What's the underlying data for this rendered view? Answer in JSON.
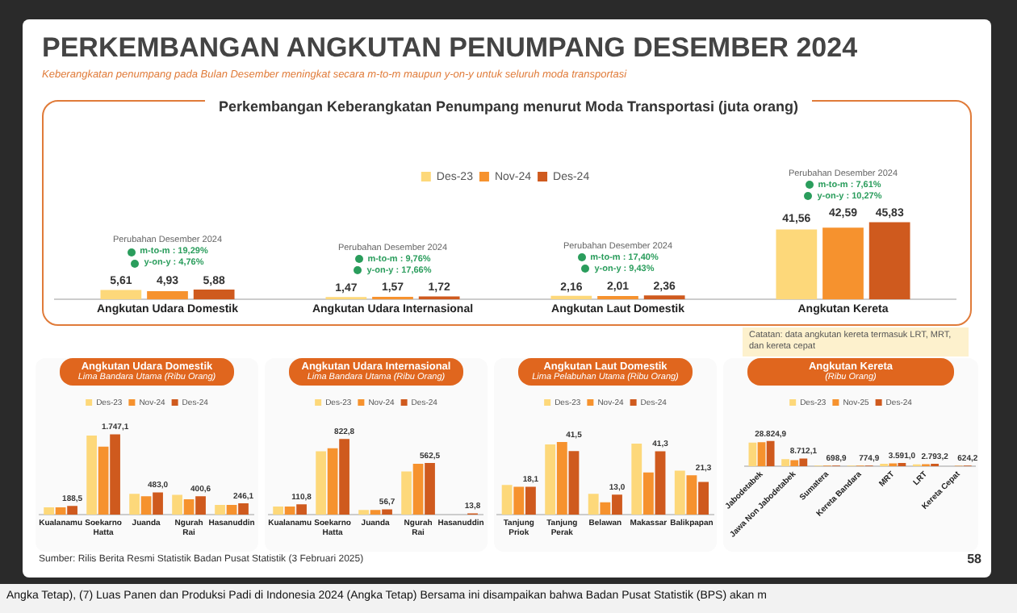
{
  "chart_data": [
    {
      "type": "other",
      "title": "PERKEMBANGAN ANGKUTAN PENUMPANG DESEMBER 2024",
      "subtitle": "Keberangkatan penumpang pada Bulan Desember meningkat secara m-to-m maupun y-on-y untuk seluruh moda transportasi",
      "annotations": [
        "Sumber: Rilis Berita Resmi Statistik Badan Pusat Statistik (3 Februari 2025)",
        "58",
        "Angka Tetap), (7) Luas Panen dan Produksi Padi di Indonesia 2024 (Angka Tetap) Bersama ini disampaikan bahwa Badan Pusat Statistik (BPS) akan m"
      ]
    },
    {
      "type": "bar",
      "title": "Perkembangan Keberangkatan Penumpang menurut Moda Transportasi (juta orang)",
      "categories": [
        "Angkutan Udara Domestik",
        "Angkutan Udara Internasional",
        "Angkutan Laut Domestik",
        "Angkutan Kereta"
      ],
      "legend": "top",
      "tick_labels": "x",
      "series": [
        {
          "name": "Des-23",
          "color": "#fdd87a",
          "values": [
            5.61,
            1.47,
            2.16,
            41.56
          ],
          "value_labels": [
            "5,61",
            "1,47",
            "2,16",
            "41,56"
          ]
        },
        {
          "name": "Nov-24",
          "color": "#f6922e",
          "values": [
            4.93,
            1.57,
            2.01,
            42.59
          ],
          "value_labels": [
            "4,93",
            "1,57",
            "2,01",
            "42,59"
          ]
        },
        {
          "name": "Des-24",
          "color": "#cf5a1e",
          "values": [
            5.88,
            1.72,
            2.36,
            45.83
          ],
          "value_labels": [
            "5,88",
            "1,72",
            "2,36",
            "45,83"
          ]
        }
      ],
      "annotations": [
        "Perubahan Desember 2024\nm-to-m : 19,29%\ny-on-y : 4,76%",
        "Perubahan Desember 2024\nm-to-m : 9,76%\ny-on-y : 17,66%",
        "Perubahan Desember 2024\nm-to-m : 17,40%\ny-on-y : 9,43%",
        "Perubahan Desember 2024\nm-to-m : 7,61%\ny-on-y : 10,27%",
        "Catatan: data angkutan kereta termasuk LRT, MRT, dan kereta cepat"
      ]
    },
    {
      "type": "bar",
      "title": "Angkutan Udara Domestik",
      "subtitle": "Lima Bandara Utama (Ribu Orang)",
      "categories": [
        "Kualanamu",
        "Soekarno Hatta",
        "Juanda",
        "Ngurah Rai",
        "Hasanuddin"
      ],
      "legend": "top",
      "tick_labels": "x",
      "series": [
        {
          "name": "Des-23",
          "color": "#fdd87a",
          "values": [
            160,
            1720,
            450,
            430,
            210
          ]
        },
        {
          "name": "Nov-24",
          "color": "#f6922e",
          "values": [
            160,
            1480,
            400,
            335,
            210
          ]
        },
        {
          "name": "Des-24",
          "color": "#cf5a1e",
          "values": [
            188.5,
            1747.1,
            483.0,
            400.6,
            246.1
          ],
          "value_labels": [
            "188,5",
            "1.747,1",
            "483,0",
            "400,6",
            "246,1"
          ]
        }
      ]
    },
    {
      "type": "bar",
      "title": "Angkutan Udara Internasional",
      "subtitle": "Lima Bandara Utama (Ribu Orang)",
      "categories": [
        "Kualanamu",
        "Soekarno Hatta",
        "Juanda",
        "Ngurah Rai",
        "Hasanuddin"
      ],
      "legend": "top",
      "tick_labels": "x",
      "series": [
        {
          "name": "Des-23",
          "color": "#fdd87a",
          "values": [
            87,
            688,
            50,
            470,
            null
          ]
        },
        {
          "name": "Nov-24",
          "color": "#f6922e",
          "values": [
            87,
            722,
            50,
            553,
            null
          ]
        },
        {
          "name": "Des-24",
          "color": "#cf5a1e",
          "values": [
            110.8,
            822.8,
            56.7,
            562.5,
            13.8
          ],
          "value_labels": [
            "110,8",
            "822,8",
            "56,7",
            "562,5",
            "13,8"
          ]
        }
      ]
    },
    {
      "type": "bar",
      "title": "Angkutan Laut Domestik",
      "subtitle": "Lima Pelabuhan Utama (Ribu Orang)",
      "categories": [
        "Tanjung Priok",
        "Tanjung Perak",
        "Belawan",
        "Makassar",
        "Balikpapan"
      ],
      "legend": "top",
      "tick_labels": "x",
      "series": [
        {
          "name": "Des-23",
          "color": "#fdd87a",
          "values": [
            19.3,
            45.8,
            13.6,
            46.3,
            28.7
          ]
        },
        {
          "name": "Nov-24",
          "color": "#f6922e",
          "values": [
            18.2,
            47.4,
            8.0,
            27.5,
            25.6
          ]
        },
        {
          "name": "Des-24",
          "color": "#cf5a1e",
          "values": [
            18.1,
            41.5,
            13.0,
            41.3,
            21.3
          ],
          "value_labels": [
            "18,1",
            "41,5",
            "13,0",
            "41,3",
            "21,3"
          ]
        }
      ]
    },
    {
      "type": "bar",
      "title": "Angkutan Kereta",
      "subtitle": "(Ribu Orang)",
      "categories": [
        "Jabodetabek",
        "Jawa Non Jabodetabek",
        "Sumatera",
        "Kereta Bandara",
        "MRT",
        "LRT",
        "Kereta Cepat"
      ],
      "legend": "top",
      "tick_labels": "x",
      "series": [
        {
          "name": "Des-23",
          "color": "#fdd87a",
          "values": [
            27150,
            8200,
            650,
            700,
            2850,
            2000,
            null
          ]
        },
        {
          "name": "Nov-25",
          "color": "#f6922e",
          "values": [
            27650,
            7040,
            600,
            680,
            3350,
            2350,
            500
          ]
        },
        {
          "name": "Des-24",
          "color": "#cf5a1e",
          "values": [
            28824.9,
            8712.1,
            698.9,
            774.9,
            3591.0,
            2793.2,
            624.2
          ],
          "value_labels": [
            "28.824,9",
            "8.712,1",
            "698,9",
            "774,9",
            "3.591,0",
            "2.793,2",
            "624,2"
          ]
        }
      ]
    }
  ]
}
